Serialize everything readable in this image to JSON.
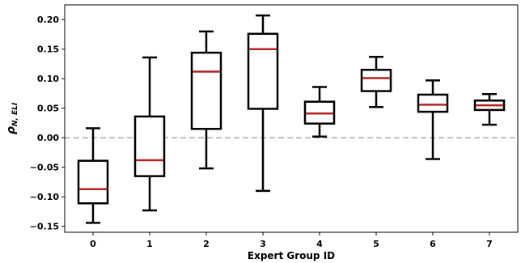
{
  "chart_data": {
    "type": "box",
    "xlabel": "Expert Group ID",
    "ylabel_main": "ρ",
    "ylabel_sub": "N, ELI",
    "ylim": [
      -0.16,
      0.225
    ],
    "yticks": [
      -0.15,
      -0.1,
      -0.05,
      0.0,
      0.05,
      0.1,
      0.15,
      0.2
    ],
    "ytick_labels": [
      "−0.15",
      "−0.10",
      "−0.05",
      "0.00",
      "0.05",
      "0.10",
      "0.15",
      "0.20"
    ],
    "reference_line": 0.0,
    "categories": [
      "0",
      "1",
      "2",
      "3",
      "4",
      "5",
      "6",
      "7"
    ],
    "boxes": [
      {
        "whisker_low": -0.144,
        "q1": -0.111,
        "median": -0.087,
        "q3": -0.039,
        "whisker_high": 0.016
      },
      {
        "whisker_low": -0.123,
        "q1": -0.065,
        "median": -0.038,
        "q3": 0.036,
        "whisker_high": 0.136
      },
      {
        "whisker_low": -0.052,
        "q1": 0.015,
        "median": 0.112,
        "q3": 0.144,
        "whisker_high": 0.18
      },
      {
        "whisker_low": -0.09,
        "q1": 0.049,
        "median": 0.15,
        "q3": 0.176,
        "whisker_high": 0.207
      },
      {
        "whisker_low": 0.002,
        "q1": 0.024,
        "median": 0.041,
        "q3": 0.061,
        "whisker_high": 0.086
      },
      {
        "whisker_low": 0.052,
        "q1": 0.079,
        "median": 0.101,
        "q3": 0.115,
        "whisker_high": 0.137
      },
      {
        "whisker_low": -0.036,
        "q1": 0.044,
        "median": 0.056,
        "q3": 0.073,
        "whisker_high": 0.097
      },
      {
        "whisker_low": 0.022,
        "q1": 0.047,
        "median": 0.055,
        "q3": 0.063,
        "whisker_high": 0.074
      }
    ],
    "colors": {
      "box": "#000000",
      "median": "#b22222",
      "reference": "#aaaaaa"
    },
    "grid": false,
    "legend": "none"
  }
}
